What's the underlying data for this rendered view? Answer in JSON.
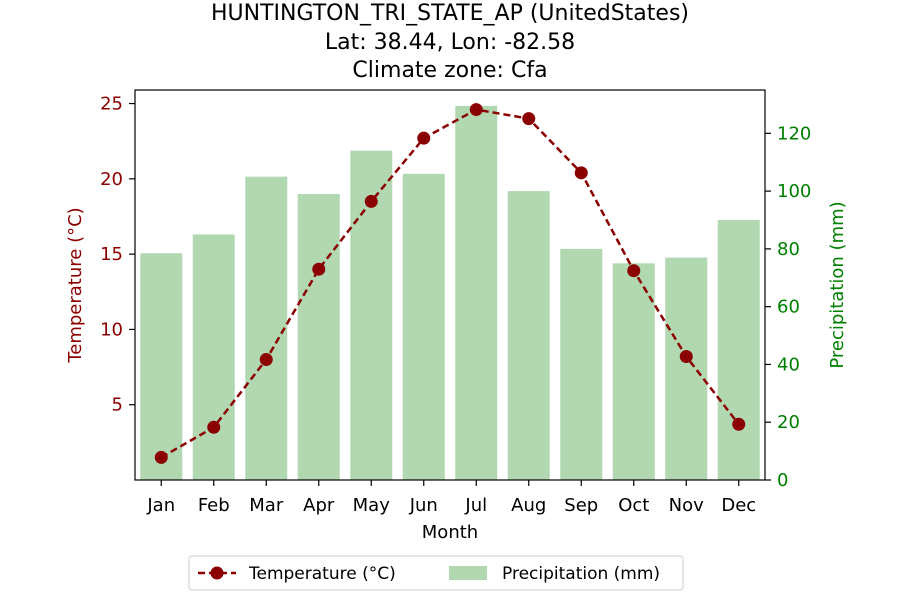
{
  "chart_data": {
    "type": "bar+line",
    "title_lines": [
      "HUNTINGTON_TRI_STATE_AP (UnitedStates)",
      "Lat: 38.44, Lon: -82.58",
      "Climate zone: Cfa"
    ],
    "xlabel": "Month",
    "ylabel_left": "Temperature (°C)",
    "ylabel_right": "Precipitation (mm)",
    "categories": [
      "Jan",
      "Feb",
      "Mar",
      "Apr",
      "May",
      "Jun",
      "Jul",
      "Aug",
      "Sep",
      "Oct",
      "Nov",
      "Dec"
    ],
    "series": [
      {
        "name": "Temperature (°C)",
        "type": "line",
        "axis": "left",
        "color": "#8b0000",
        "style": "dashed",
        "marker": "circle",
        "values": [
          1.5,
          3.5,
          8.0,
          14.0,
          18.5,
          22.7,
          24.6,
          24.0,
          20.4,
          13.9,
          8.2,
          3.7
        ]
      },
      {
        "name": "Precipitation (mm)",
        "type": "bar",
        "axis": "right",
        "color": "#b2d8b2",
        "values": [
          78.5,
          85,
          105,
          99,
          114,
          106,
          129.5,
          100,
          80,
          75,
          77,
          90
        ]
      }
    ],
    "ylim_left": [
      0,
      25.9
    ],
    "yticks_left": [
      5,
      10,
      15,
      20,
      25
    ],
    "ylim_right": [
      0,
      135
    ],
    "yticks_right": [
      0,
      20,
      40,
      60,
      80,
      100,
      120
    ],
    "left_axis_color": "#8b0000",
    "right_axis_color": "#008000",
    "legend_position": "bottom-center"
  }
}
